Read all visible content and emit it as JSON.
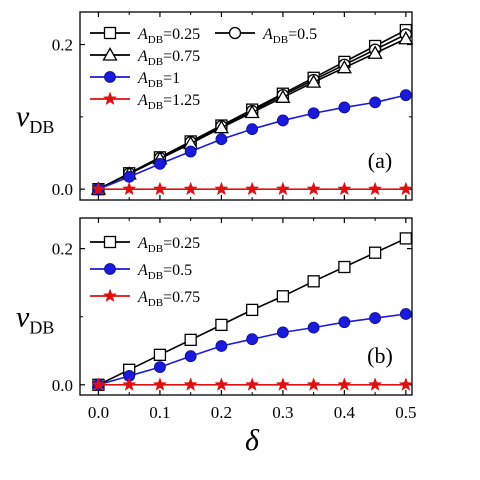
{
  "chart_data": [
    {
      "type": "line",
      "panel_label": "(a)",
      "ylabel": {
        "main": "v",
        "sub": "DB"
      },
      "xlim": [
        -0.03,
        0.51
      ],
      "ylim": [
        -0.015,
        0.245
      ],
      "x": [
        0,
        0.05,
        0.1,
        0.15,
        0.2,
        0.25,
        0.3,
        0.35,
        0.4,
        0.45,
        0.5
      ],
      "xticks": [
        0.0,
        0.1,
        0.2,
        0.3,
        0.4,
        0.5
      ],
      "xtick_labels": [
        "0.0",
        "0.1",
        "0.2",
        "0.3",
        "0.4",
        "0.5"
      ],
      "xtick_labels_visible": false,
      "yticks": [
        0.0,
        0.2
      ],
      "ytick_labels": [
        "0.0",
        "0.2"
      ],
      "legend_position": "top-left",
      "series": [
        {
          "label_prefix": "A",
          "label_sub": "DB",
          "label_value": "=0.25",
          "marker": "square-open",
          "color": "#000000",
          "values": [
            0,
            0.022,
            0.044,
            0.066,
            0.088,
            0.11,
            0.132,
            0.154,
            0.176,
            0.198,
            0.22
          ]
        },
        {
          "label_prefix": "A",
          "label_sub": "DB",
          "label_value": "=0.5",
          "marker": "circle-open",
          "color": "#000000",
          "values": [
            0,
            0.0215,
            0.043,
            0.065,
            0.087,
            0.108,
            0.13,
            0.151,
            0.172,
            0.193,
            0.214
          ]
        },
        {
          "label_prefix": "A",
          "label_sub": "DB",
          "label_value": "=0.75",
          "marker": "triangle-open",
          "color": "#000000",
          "values": [
            0,
            0.021,
            0.042,
            0.063,
            0.085,
            0.106,
            0.127,
            0.148,
            0.168,
            0.188,
            0.208
          ]
        },
        {
          "label_prefix": "A",
          "label_sub": "DB",
          "label_value": "=1",
          "marker": "circle-filled",
          "color": "#1a1adb",
          "values": [
            0,
            0.017,
            0.035,
            0.052,
            0.069,
            0.083,
            0.095,
            0.105,
            0.113,
            0.12,
            0.13
          ]
        },
        {
          "label_prefix": "A",
          "label_sub": "DB",
          "label_value": "=1.25",
          "marker": "star-filled",
          "color": "#e01010",
          "values": [
            0,
            0,
            0,
            0,
            0,
            0,
            0,
            0,
            0,
            0,
            0
          ]
        }
      ]
    },
    {
      "type": "line",
      "panel_label": "(b)",
      "ylabel": {
        "main": "v",
        "sub": "DB"
      },
      "xlabel": "δ",
      "xlim": [
        -0.03,
        0.51
      ],
      "ylim": [
        -0.015,
        0.245
      ],
      "x": [
        0,
        0.05,
        0.1,
        0.15,
        0.2,
        0.25,
        0.3,
        0.35,
        0.4,
        0.45,
        0.5
      ],
      "xticks": [
        0.0,
        0.1,
        0.2,
        0.3,
        0.4,
        0.5
      ],
      "xtick_labels": [
        "0.0",
        "0.1",
        "0.2",
        "0.3",
        "0.4",
        "0.5"
      ],
      "xtick_labels_visible": true,
      "yticks": [
        0.0,
        0.2
      ],
      "ytick_labels": [
        "0.0",
        "0.2"
      ],
      "legend_position": "top-left",
      "series": [
        {
          "label_prefix": "A",
          "label_sub": "DB",
          "label_value": "=0.25",
          "marker": "square-open",
          "color": "#000000",
          "values": [
            0,
            0.022,
            0.044,
            0.066,
            0.088,
            0.11,
            0.13,
            0.152,
            0.173,
            0.194,
            0.215
          ]
        },
        {
          "label_prefix": "A",
          "label_sub": "DB",
          "label_value": "=0.5",
          "marker": "circle-filled",
          "color": "#1a1adb",
          "values": [
            0,
            0.013,
            0.026,
            0.042,
            0.057,
            0.067,
            0.077,
            0.084,
            0.092,
            0.098,
            0.104
          ]
        },
        {
          "label_prefix": "A",
          "label_sub": "DB",
          "label_value": "=0.75",
          "marker": "star-filled",
          "color": "#e01010",
          "values": [
            0,
            0,
            0,
            0,
            0,
            0,
            0,
            0,
            0,
            0,
            0
          ]
        }
      ]
    }
  ]
}
